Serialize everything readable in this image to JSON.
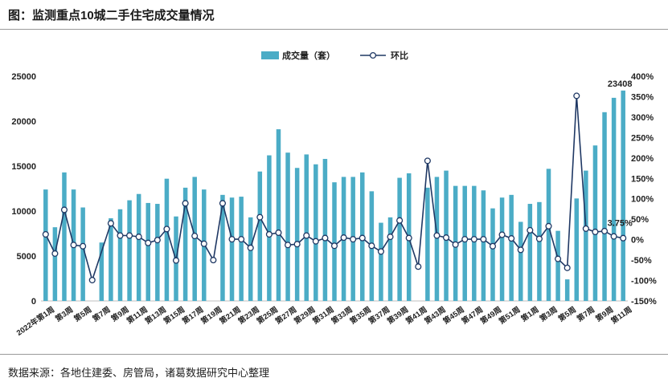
{
  "header": {
    "title": "图：监测重点10城二手住宅成交量情况"
  },
  "footer": {
    "source": "数据来源：各地住建委、房管局，诸葛数据研究中心整理"
  },
  "colors": {
    "bar": "#4bacc6",
    "line": "#1f3864",
    "marker_fill": "#ffffff"
  },
  "chart_data": {
    "type": "bar",
    "title": "",
    "legend": {
      "position": "top-center",
      "bar_label": "成交量（套）",
      "line_label": "环比"
    },
    "left_axis": {
      "min": 0,
      "max": 25000,
      "ticks": [
        "0",
        "5000",
        "10000",
        "15000",
        "20000",
        "25000"
      ]
    },
    "right_axis": {
      "min": -1.5,
      "max": 4.0,
      "ticks": [
        "-150%",
        "-100%",
        "-50%",
        "0%",
        "50%",
        "100%",
        "150%",
        "200%",
        "250%",
        "300%",
        "350%",
        "400%"
      ]
    },
    "x_ticks": [
      {
        "index": 1,
        "label": "2022年第1周"
      },
      {
        "index": 3,
        "label": "第3周"
      },
      {
        "index": 5,
        "label": "第5周"
      },
      {
        "index": 7,
        "label": "第7周"
      },
      {
        "index": 9,
        "label": "第9周"
      },
      {
        "index": 11,
        "label": "第11周"
      },
      {
        "index": 13,
        "label": "第13周"
      },
      {
        "index": 15,
        "label": "第15周"
      },
      {
        "index": 17,
        "label": "第17周"
      },
      {
        "index": 19,
        "label": "第19周"
      },
      {
        "index": 21,
        "label": "第21周"
      },
      {
        "index": 23,
        "label": "第23周"
      },
      {
        "index": 25,
        "label": "第25周"
      },
      {
        "index": 27,
        "label": "第27周"
      },
      {
        "index": 29,
        "label": "第29周"
      },
      {
        "index": 31,
        "label": "第31周"
      },
      {
        "index": 33,
        "label": "第33周"
      },
      {
        "index": 35,
        "label": "第35周"
      },
      {
        "index": 37,
        "label": "第37周"
      },
      {
        "index": 39,
        "label": "第39周"
      },
      {
        "index": 41,
        "label": "第41周"
      },
      {
        "index": 43,
        "label": "第43周"
      },
      {
        "index": 45,
        "label": "第45周"
      },
      {
        "index": 47,
        "label": "第47周"
      },
      {
        "index": 49,
        "label": "第49周"
      },
      {
        "index": 51,
        "label": "第51周"
      },
      {
        "index": 53,
        "label": "第1周"
      },
      {
        "index": 55,
        "label": "第3周"
      },
      {
        "index": 57,
        "label": "第5周"
      },
      {
        "index": 59,
        "label": "第7周"
      },
      {
        "index": 61,
        "label": "第9周"
      },
      {
        "index": 63,
        "label": "第11周"
      }
    ],
    "series": [
      {
        "name": "成交量（套）",
        "type": "bar",
        "axis": "left",
        "values": [
          12400,
          8200,
          14300,
          12400,
          10400,
          null,
          6500,
          9200,
          10200,
          11200,
          11900,
          10900,
          10800,
          13600,
          9400,
          12600,
          13800,
          12400,
          null,
          11800,
          11500,
          11600,
          9300,
          14400,
          16200,
          19100,
          16500,
          14800,
          16300,
          15200,
          15800,
          13200,
          13800,
          13800,
          14300,
          12200,
          8700,
          9300,
          13700,
          14200,
          null,
          12600,
          13800,
          14500,
          12800,
          12800,
          12800,
          12300,
          10300,
          11500,
          11800,
          8800,
          10800,
          11000,
          14700,
          7800,
          2400,
          11400,
          14500,
          17300,
          21000,
          22600,
          23408
        ]
      },
      {
        "name": "环比",
        "type": "line",
        "axis": "right",
        "values": [
          0.13,
          -0.34,
          0.73,
          -0.13,
          -0.16,
          -0.99,
          null,
          0.4,
          0.1,
          0.1,
          0.07,
          -0.08,
          -0.01,
          0.26,
          -0.51,
          0.89,
          0.09,
          -0.1,
          -0.5,
          0.89,
          0.01,
          0.01,
          -0.2,
          0.55,
          0.13,
          0.17,
          -0.13,
          -0.11,
          0.1,
          -0.04,
          0.04,
          -0.15,
          0.05,
          0.01,
          0.04,
          -0.15,
          -0.29,
          0.07,
          0.47,
          0.04,
          -0.66,
          1.93,
          0.1,
          0.05,
          -0.12,
          0.01,
          0.01,
          0.01,
          -0.16,
          0.12,
          0.03,
          -0.25,
          0.23,
          0.02,
          0.33,
          -0.47,
          -0.69,
          3.52,
          0.27,
          0.19,
          0.21,
          0.08,
          0.0375
        ]
      }
    ],
    "data_labels": [
      {
        "series": "成交量（套）",
        "index": 62,
        "text": "23408"
      },
      {
        "series": "环比",
        "index": 62,
        "text": "3.75%"
      }
    ]
  }
}
